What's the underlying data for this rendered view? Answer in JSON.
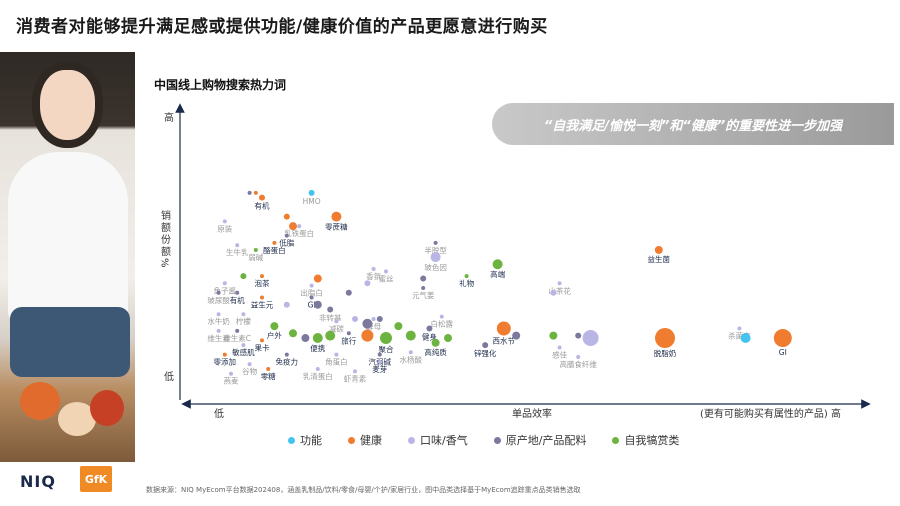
{
  "title": "消费者对能够提升满足感或提供功能/健康价值的产品更愿意进行购买",
  "callout": "“自我满足/愉悦一刻”和“健康”的重要性进一步加强",
  "footer": {
    "logo_niq": "NIQ",
    "logo_gfk": "GfK",
    "source": "数据来源：NIQ MyEcom平台数据202408，涵盖乳制品/饮料/零食/母婴/个护/家居行业，图中品类选择基于MyEcom追踪重点品类销售选取"
  },
  "colors": {
    "功能": "#45c3ef",
    "健康": "#f07c2f",
    "口味/香气": "#b9b6e6",
    "原产地/产品配料": "#7b7a9e",
    "自我犒赏类": "#6db33f"
  },
  "chart_data": {
    "type": "scatter",
    "title": "中国线上购物搜索热力词",
    "xlabel": "单品效率",
    "xlabel_right": "(更有可能购买有属性的产品) 高",
    "x_low": "低",
    "ylabel": "销额份额%",
    "y_high": "高",
    "y_low": "低",
    "xlim": [
      0,
      100
    ],
    "ylim": [
      0,
      100
    ],
    "legend": [
      "功能",
      "健康",
      "口味/香气",
      "原产地/产品配料",
      "自我犒赏类"
    ],
    "points": [
      {
        "label": "HMO",
        "cat": "功能",
        "x": 18,
        "y": 82,
        "r": 3,
        "labelDim": true
      },
      {
        "label": "有机",
        "cat": "健康",
        "x": 10,
        "y": 80,
        "r": 3
      },
      {
        "label": "",
        "cat": "原产地/产品配料",
        "x": 8,
        "y": 82,
        "r": 2
      },
      {
        "label": "",
        "cat": "健康",
        "x": 9,
        "y": 82,
        "r": 2
      },
      {
        "label": "零蔗糖",
        "cat": "健康",
        "x": 22,
        "y": 72,
        "r": 5
      },
      {
        "label": "",
        "cat": "健康",
        "x": 14,
        "y": 72,
        "r": 3
      },
      {
        "label": "乳铁蛋白",
        "cat": "口味/香气",
        "x": 16,
        "y": 68,
        "r": 2,
        "labelDim": true
      },
      {
        "label": "原装",
        "cat": "口味/香气",
        "x": 4,
        "y": 70,
        "r": 2,
        "labelDim": true
      },
      {
        "label": "",
        "cat": "健康",
        "x": 15,
        "y": 68,
        "r": 4
      },
      {
        "label": "低脂",
        "cat": "原产地/产品配料",
        "x": 14,
        "y": 64,
        "r": 2
      },
      {
        "label": "酪蛋白",
        "cat": "健康",
        "x": 12,
        "y": 61,
        "r": 2
      },
      {
        "label": "生牛乳",
        "cat": "口味/香气",
        "x": 6,
        "y": 60,
        "r": 2,
        "labelDim": true
      },
      {
        "label": "弱碱",
        "cat": "自我犒赏类",
        "x": 9,
        "y": 58,
        "r": 2,
        "labelDim": true
      },
      {
        "label": "半脱型",
        "cat": "原产地/产品配料",
        "x": 38,
        "y": 61,
        "r": 2,
        "labelDim": true
      },
      {
        "label": "益生菌",
        "cat": "健康",
        "x": 74,
        "y": 58,
        "r": 4
      },
      {
        "label": "玻色因",
        "cat": "口味/香气",
        "x": 38,
        "y": 55,
        "r": 5,
        "labelDim": true
      },
      {
        "label": "高端",
        "cat": "自我犒赏类",
        "x": 48,
        "y": 52,
        "r": 5
      },
      {
        "label": "香氛",
        "cat": "口味/香气",
        "x": 28,
        "y": 50,
        "r": 2,
        "labelDim": true
      },
      {
        "label": "蜜丝",
        "cat": "口味/香气",
        "x": 30,
        "y": 49,
        "r": 2,
        "labelDim": true
      },
      {
        "label": "礼物",
        "cat": "自我犒赏类",
        "x": 43,
        "y": 47,
        "r": 2
      },
      {
        "label": "泡茶",
        "cat": "健康",
        "x": 10,
        "y": 47,
        "r": 2
      },
      {
        "label": "",
        "cat": "自我犒赏类",
        "x": 7,
        "y": 47,
        "r": 3
      },
      {
        "label": "鱼子酱",
        "cat": "口味/香气",
        "x": 4,
        "y": 44,
        "r": 2,
        "labelDim": true
      },
      {
        "label": "",
        "cat": "健康",
        "x": 19,
        "y": 46,
        "r": 4
      },
      {
        "label": "出脂白",
        "cat": "口味/香气",
        "x": 18,
        "y": 43,
        "r": 2,
        "labelDim": true
      },
      {
        "label": "山茶花",
        "cat": "口味/香气",
        "x": 58,
        "y": 44,
        "r": 2,
        "labelDim": true
      },
      {
        "label": "玻尿酸",
        "cat": "原产地/产品配料",
        "x": 3,
        "y": 40,
        "r": 2,
        "labelDim": true
      },
      {
        "label": "有机",
        "cat": "原产地/产品配料",
        "x": 6,
        "y": 40,
        "r": 2
      },
      {
        "label": "益生元",
        "cat": "健康",
        "x": 10,
        "y": 38,
        "r": 2
      },
      {
        "label": "GI",
        "cat": "原产地/产品配料",
        "x": 18,
        "y": 38,
        "r": 2
      },
      {
        "label": "元气姜",
        "cat": "原产地/产品配料",
        "x": 36,
        "y": 42,
        "r": 2,
        "labelDim": true
      },
      {
        "label": "",
        "cat": "原产地/产品配料",
        "x": 36,
        "y": 46,
        "r": 3
      },
      {
        "label": "",
        "cat": "口味/香气",
        "x": 27,
        "y": 44,
        "r": 3
      },
      {
        "label": "",
        "cat": "口味/香气",
        "x": 57,
        "y": 40,
        "r": 3
      },
      {
        "label": "",
        "cat": "原产地/产品配料",
        "x": 24,
        "y": 40,
        "r": 3
      },
      {
        "label": "非转基",
        "cat": "原产地/产品配料",
        "x": 21,
        "y": 33,
        "r": 3,
        "labelDim": true
      },
      {
        "label": "",
        "cat": "口味/香气",
        "x": 14,
        "y": 35,
        "r": 3
      },
      {
        "label": "",
        "cat": "原产地/产品配料",
        "x": 19,
        "y": 35,
        "r": 4
      },
      {
        "label": "水牛奶",
        "cat": "口味/香气",
        "x": 3,
        "y": 31,
        "r": 2,
        "labelDim": true
      },
      {
        "label": "柠檬",
        "cat": "口味/香气",
        "x": 7,
        "y": 31,
        "r": 2,
        "labelDim": true
      },
      {
        "label": "白松露",
        "cat": "口味/香气",
        "x": 39,
        "y": 30,
        "r": 2,
        "labelDim": true
      },
      {
        "label": "酵母",
        "cat": "口味/香气",
        "x": 28,
        "y": 29,
        "r": 2,
        "labelDim": true
      },
      {
        "label": "健身",
        "cat": "原产地/产品配料",
        "x": 37,
        "y": 25,
        "r": 3
      },
      {
        "label": "",
        "cat": "自我犒赏类",
        "x": 32,
        "y": 26,
        "r": 4
      },
      {
        "label": "",
        "cat": "原产地/产品配料",
        "x": 27,
        "y": 27,
        "r": 5
      },
      {
        "label": "",
        "cat": "口味/香气",
        "x": 25,
        "y": 29,
        "r": 3
      },
      {
        "label": "减碳",
        "cat": "口味/香气",
        "x": 22,
        "y": 28,
        "r": 2,
        "labelDim": true
      },
      {
        "label": "",
        "cat": "原产地/产品配料",
        "x": 29,
        "y": 29,
        "r": 3
      },
      {
        "label": "西水节",
        "cat": "健康",
        "x": 49,
        "y": 25,
        "r": 7
      },
      {
        "label": "",
        "cat": "原产地/产品配料",
        "x": 51,
        "y": 22,
        "r": 4
      },
      {
        "label": "",
        "cat": "自我犒赏类",
        "x": 57,
        "y": 22,
        "r": 4
      },
      {
        "label": "",
        "cat": "原产地/产品配料",
        "x": 61,
        "y": 22,
        "r": 3
      },
      {
        "label": "",
        "cat": "口味/香气",
        "x": 63,
        "y": 21,
        "r": 8
      },
      {
        "label": "杀菌率",
        "cat": "口味/香气",
        "x": 87,
        "y": 25,
        "r": 2,
        "labelDim": true
      },
      {
        "label": "维生素",
        "cat": "口味/香气",
        "x": 3,
        "y": 24,
        "r": 2,
        "labelDim": true
      },
      {
        "label": "维生素C",
        "cat": "原产地/产品配料",
        "x": 6,
        "y": 24,
        "r": 2,
        "labelDim": true
      },
      {
        "label": "户外",
        "cat": "自我犒赏类",
        "x": 12,
        "y": 26,
        "r": 4
      },
      {
        "label": "",
        "cat": "自我犒赏类",
        "x": 15,
        "y": 23,
        "r": 4
      },
      {
        "label": "",
        "cat": "原产地/产品配料",
        "x": 17,
        "y": 21,
        "r": 4
      },
      {
        "label": "便携",
        "cat": "自我犒赏类",
        "x": 19,
        "y": 21,
        "r": 5
      },
      {
        "label": "",
        "cat": "自我犒赏类",
        "x": 21,
        "y": 22,
        "r": 5
      },
      {
        "label": "旅行",
        "cat": "原产地/产品配料",
        "x": 24,
        "y": 23,
        "r": 2
      },
      {
        "label": "",
        "cat": "健康",
        "x": 27,
        "y": 22,
        "r": 6
      },
      {
        "label": "聚合",
        "cat": "自我犒赏类",
        "x": 30,
        "y": 21,
        "r": 6
      },
      {
        "label": "",
        "cat": "自我犒赏类",
        "x": 34,
        "y": 22,
        "r": 5
      },
      {
        "label": "",
        "cat": "自我犒赏类",
        "x": 40,
        "y": 21,
        "r": 4
      },
      {
        "label": "高纯质",
        "cat": "自我犒赏类",
        "x": 38,
        "y": 19,
        "r": 4
      },
      {
        "label": "锌强化",
        "cat": "原产地/产品配料",
        "x": 46,
        "y": 18,
        "r": 3
      },
      {
        "label": "敏感肌",
        "cat": "口味/香气",
        "x": 7,
        "y": 18,
        "r": 2
      },
      {
        "label": "果卡",
        "cat": "健康",
        "x": 10,
        "y": 20,
        "r": 2
      },
      {
        "label": "水杨酸",
        "cat": "口味/香气",
        "x": 34,
        "y": 15,
        "r": 2,
        "labelDim": true
      },
      {
        "label": "汽弱碱",
        "cat": "原产地/产品配料",
        "x": 29,
        "y": 14,
        "r": 2
      },
      {
        "label": "感佳",
        "cat": "口味/香气",
        "x": 58,
        "y": 17,
        "r": 2,
        "labelDim": true
      },
      {
        "label": "高膳食纤维",
        "cat": "口味/香气",
        "x": 61,
        "y": 13,
        "r": 2,
        "labelDim": true
      },
      {
        "label": "零添加",
        "cat": "健康",
        "x": 4,
        "y": 14,
        "r": 2
      },
      {
        "label": "免疫力",
        "cat": "原产地/产品配料",
        "x": 14,
        "y": 14,
        "r": 2
      },
      {
        "label": "角蛋白",
        "cat": "口味/香气",
        "x": 22,
        "y": 14,
        "r": 2,
        "labelDim": true
      },
      {
        "label": "麦芽",
        "cat": "口味/香气",
        "x": 29,
        "y": 11,
        "r": 2
      },
      {
        "label": "谷物",
        "cat": "口味/香气",
        "x": 8,
        "y": 10,
        "r": 2,
        "labelDim": true
      },
      {
        "label": "零糖",
        "cat": "健康",
        "x": 11,
        "y": 8,
        "r": 2
      },
      {
        "label": "乳清蛋白",
        "cat": "口味/香气",
        "x": 19,
        "y": 8,
        "r": 2,
        "labelDim": true
      },
      {
        "label": "虾青素",
        "cat": "口味/香气",
        "x": 25,
        "y": 7,
        "r": 2,
        "labelDim": true
      },
      {
        "label": "燕麦",
        "cat": "口味/香气",
        "x": 5,
        "y": 6,
        "r": 2,
        "labelDim": true
      },
      {
        "label": "脱脂奶",
        "cat": "健康",
        "x": 75,
        "y": 21,
        "r": 10
      },
      {
        "label": "",
        "cat": "功能",
        "x": 88,
        "y": 21,
        "r": 5
      },
      {
        "label": "GI",
        "cat": "健康",
        "x": 94,
        "y": 21,
        "r": 9
      }
    ]
  }
}
